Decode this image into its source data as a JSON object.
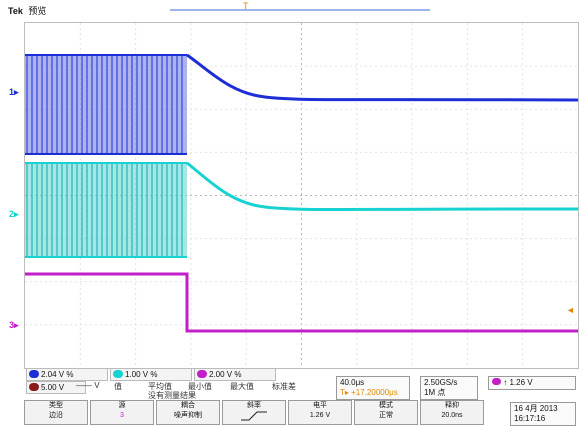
{
  "header": {
    "brand": "Tek",
    "acq_state": "预览"
  },
  "markers": {
    "trigger_pos": "T",
    "trigger_level": "◄"
  },
  "channels": [
    {
      "id": "1",
      "color": "#1c2fd6",
      "scale": "2.04 V",
      "suffix": "%"
    },
    {
      "id": "2",
      "color": "#18d2d2",
      "scale": "1.00 V",
      "suffix": "%"
    },
    {
      "id": "3",
      "color": "#c21fc8",
      "scale": "2.00 V",
      "suffix": "%"
    }
  ],
  "math": {
    "label": "5.00 V",
    "sub": "—— V"
  },
  "measurements": {
    "headers": [
      "值",
      "平均值",
      "最小值",
      "最大值",
      "标准差"
    ],
    "row_hint": "没有测量结果"
  },
  "timebase": {
    "scale": "40.0μs",
    "offset": "T▸ +17.20000μs"
  },
  "sample": {
    "rate": "2.50GS/s",
    "points": "1M 点"
  },
  "trigger": {
    "source_symbol": "↑",
    "level": "1.26 V"
  },
  "softkeys": [
    {
      "line1": "类型",
      "line2": "边沿"
    },
    {
      "line1": "源",
      "line2": "3"
    },
    {
      "line1": "耦合",
      "line2": "噪声抑制"
    },
    {
      "line1": "斜率",
      "line2": ""
    },
    {
      "line1": "电平",
      "line2": "1.26 V"
    },
    {
      "line1": "模式",
      "line2": "正常"
    },
    {
      "line1": "释抑",
      "line2": "20.0ns"
    }
  ],
  "clock": {
    "date": "16 4月 2013",
    "time": "16:17:16"
  }
}
